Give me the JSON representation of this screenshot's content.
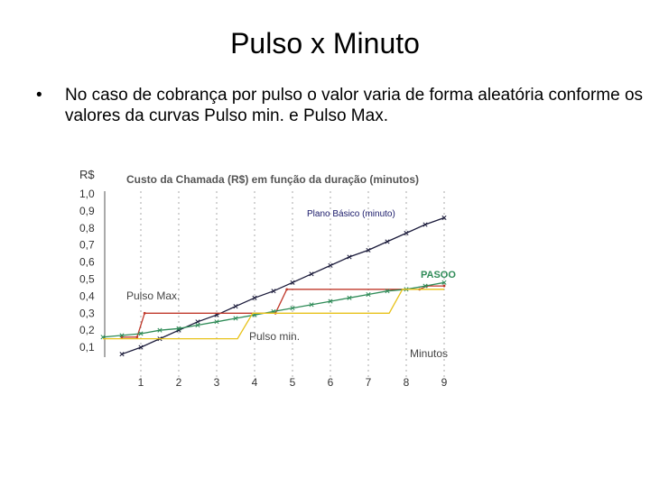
{
  "slide": {
    "title": "Pulso x Minuto",
    "bullet": "No caso de cobrança por pulso o valor varia de forma aleatória conforme os valores da curvas Pulso min. e Pulso Max."
  },
  "chart_data": {
    "type": "line",
    "title": "Custo da Chamada (R$) em função da duração (minutos)",
    "ylabel": "R$",
    "xlabel": "Minutos",
    "xlim": [
      0,
      9
    ],
    "ylim": [
      0,
      1.0
    ],
    "x_ticks": [
      "1",
      "2",
      "3",
      "4",
      "5",
      "6",
      "7",
      "8",
      "9"
    ],
    "y_ticks": [
      "0,1",
      "0,2",
      "0,3",
      "0,4",
      "0,5",
      "0,6",
      "0,7",
      "0,8",
      "0,9",
      "1,0"
    ],
    "grid": "vertical-dashed",
    "series": [
      {
        "name": "Plano Básico (minuto)",
        "color": "#1a1a3a",
        "marker": "x",
        "points": [
          [
            0.5,
            0.06
          ],
          [
            1,
            0.1
          ],
          [
            1.5,
            0.15
          ],
          [
            2,
            0.2
          ],
          [
            2.5,
            0.25
          ],
          [
            3,
            0.29
          ],
          [
            3.5,
            0.34
          ],
          [
            4,
            0.39
          ],
          [
            4.5,
            0.43
          ],
          [
            5,
            0.48
          ],
          [
            5.5,
            0.53
          ],
          [
            6,
            0.58
          ],
          [
            6.5,
            0.63
          ],
          [
            7,
            0.67
          ],
          [
            7.5,
            0.72
          ],
          [
            8,
            0.77
          ],
          [
            8.5,
            0.82
          ],
          [
            9,
            0.86
          ]
        ]
      },
      {
        "name": "Pulso Max.",
        "color": "#c0392b",
        "marker": "dot",
        "points": [
          [
            0.5,
            0.16
          ],
          [
            0.9,
            0.16
          ],
          [
            1.1,
            0.3
          ],
          [
            4.55,
            0.3
          ],
          [
            4.85,
            0.44
          ],
          [
            8.35,
            0.44
          ],
          [
            8.55,
            0.46
          ],
          [
            9,
            0.46
          ]
        ]
      },
      {
        "name": "PASOO",
        "color": "#2e8b57",
        "marker": "x",
        "points": [
          [
            0,
            0.16
          ],
          [
            0.5,
            0.17
          ],
          [
            1,
            0.18
          ],
          [
            1.5,
            0.2
          ],
          [
            2,
            0.21
          ],
          [
            2.5,
            0.23
          ],
          [
            3,
            0.25
          ],
          [
            3.5,
            0.27
          ],
          [
            4,
            0.29
          ],
          [
            4.5,
            0.31
          ],
          [
            5,
            0.33
          ],
          [
            5.5,
            0.35
          ],
          [
            6,
            0.37
          ],
          [
            6.5,
            0.39
          ],
          [
            7,
            0.41
          ],
          [
            7.5,
            0.43
          ],
          [
            8,
            0.44
          ],
          [
            8.5,
            0.46
          ],
          [
            9,
            0.48
          ]
        ]
      },
      {
        "name": "Pulso min.",
        "color": "#e8c21a",
        "marker": "none",
        "points": [
          [
            0,
            0.15
          ],
          [
            3.55,
            0.15
          ],
          [
            3.95,
            0.3
          ],
          [
            7.55,
            0.3
          ],
          [
            7.9,
            0.44
          ],
          [
            9,
            0.44
          ]
        ]
      }
    ],
    "annotations": [
      "Plano Básico (minuto)",
      "Pulso Max.",
      "PASOO",
      "Pulso min."
    ]
  }
}
